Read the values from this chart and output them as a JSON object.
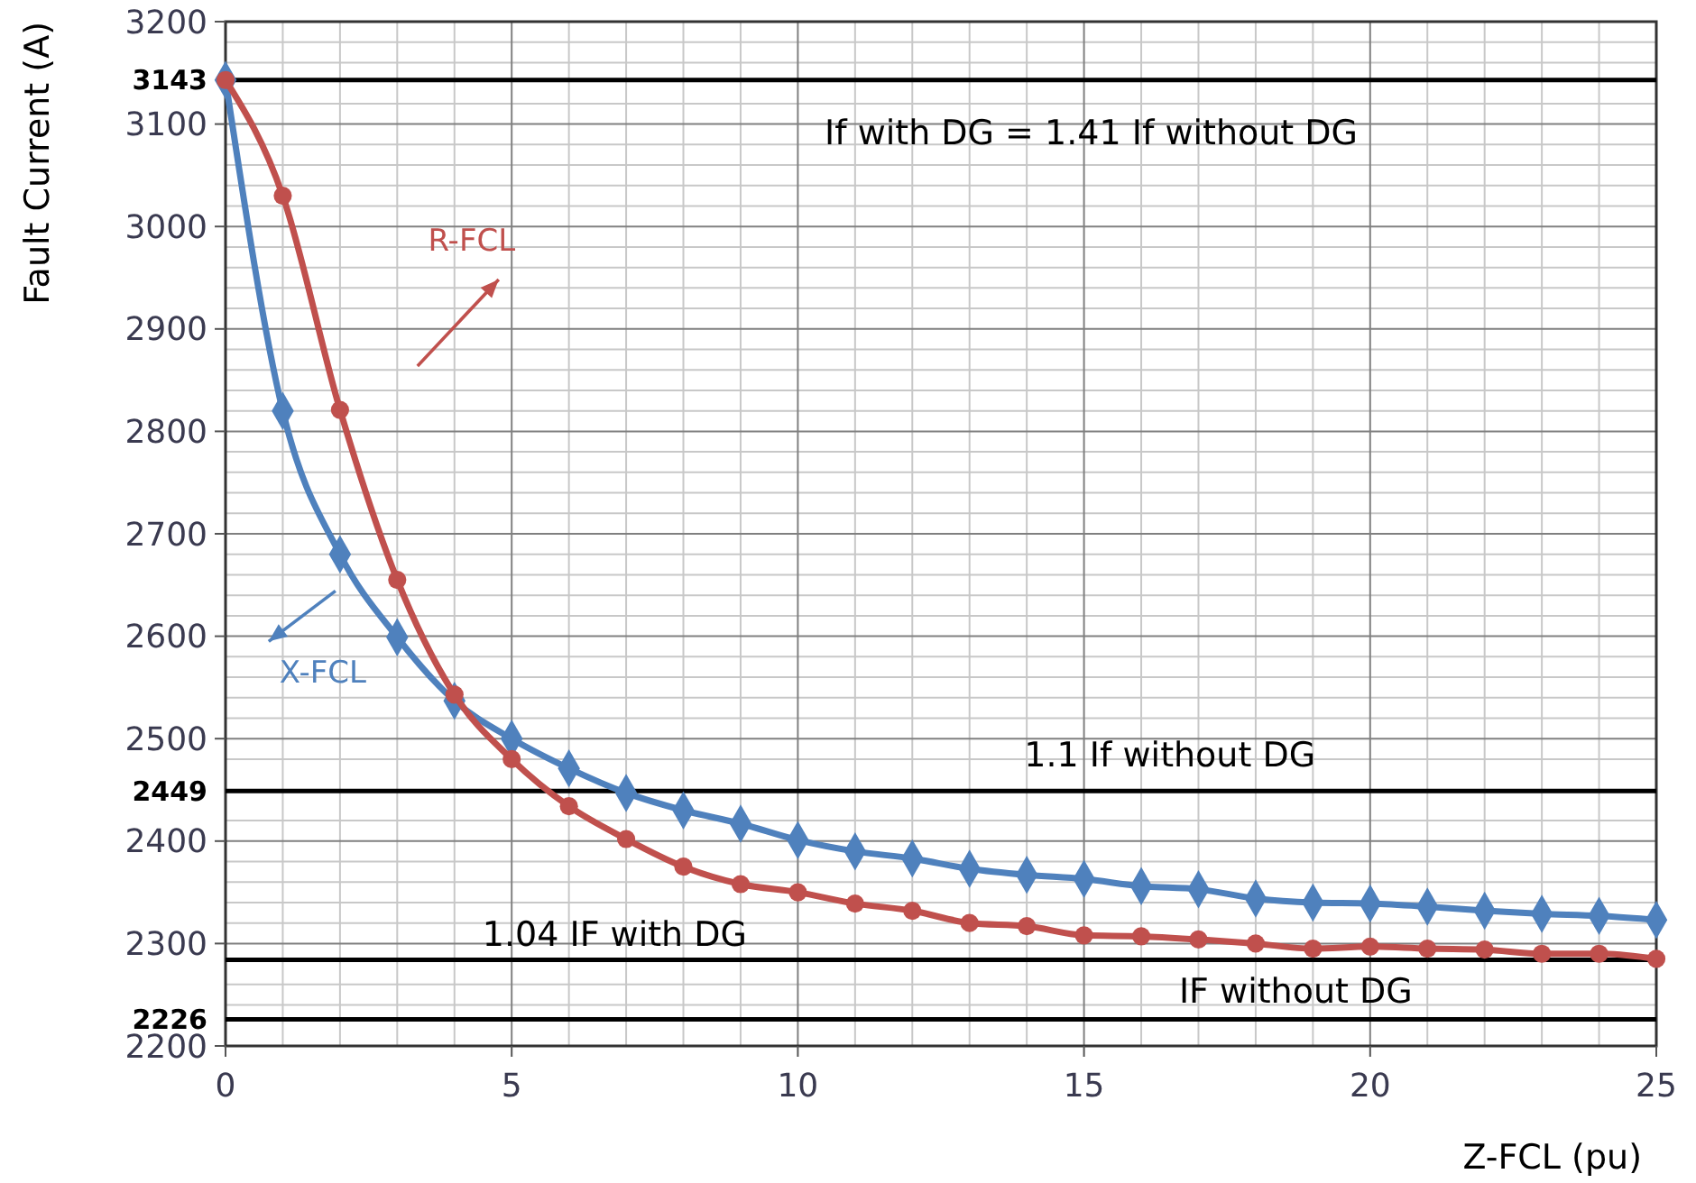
{
  "chart_data": {
    "type": "line",
    "xlabel": "Z-FCL (pu)",
    "ylabel": "Fault Current (A)",
    "x": [
      0,
      1,
      2,
      3,
      4,
      5,
      6,
      7,
      8,
      9,
      10,
      11,
      12,
      13,
      14,
      15,
      16,
      17,
      18,
      19,
      20,
      21,
      22,
      23,
      24,
      25
    ],
    "series": [
      {
        "name": "R-FCL",
        "color": "#c0504d",
        "marker": "circle",
        "values": [
          3143,
          3030,
          2821,
          2655,
          2543,
          2480,
          2434,
          2402,
          2375,
          2358,
          2350,
          2339,
          2332,
          2320,
          2317,
          2308,
          2307,
          2304,
          2300,
          2295,
          2297,
          2295,
          2294,
          2290,
          2290,
          2285
        ]
      },
      {
        "name": "X-FCL",
        "color": "#4f81bd",
        "marker": "diamond",
        "values": [
          3143,
          2820,
          2680,
          2599,
          2537,
          2500,
          2471,
          2447,
          2430,
          2417,
          2401,
          2390,
          2383,
          2373,
          2367,
          2363,
          2356,
          2353,
          2344,
          2340,
          2339,
          2336,
          2332,
          2329,
          2327,
          2323
        ]
      }
    ],
    "xlim": [
      0,
      25
    ],
    "xticks": [
      0,
      5,
      10,
      15,
      20,
      25
    ],
    "ylim": [
      2200,
      3200
    ],
    "yticks": [
      2200,
      2300,
      2400,
      2500,
      2600,
      2700,
      2800,
      2900,
      3000,
      3100,
      3200
    ],
    "grid": true,
    "line_style": "solid",
    "ref_lines": [
      {
        "axis": "y",
        "value": 3143,
        "color": "#000000",
        "label": "3143"
      },
      {
        "axis": "y",
        "value": 2449,
        "color": "#000000",
        "label": "2449"
      },
      {
        "axis": "y",
        "value": 2284,
        "color": "#000000"
      },
      {
        "axis": "y",
        "value": 2226,
        "color": "#000000",
        "label": "2226"
      }
    ],
    "annotations": [
      "If with DG = 1.41 If without DG",
      "1.1 If without DG",
      "1.04 IF with DG",
      "IF without DG"
    ]
  }
}
